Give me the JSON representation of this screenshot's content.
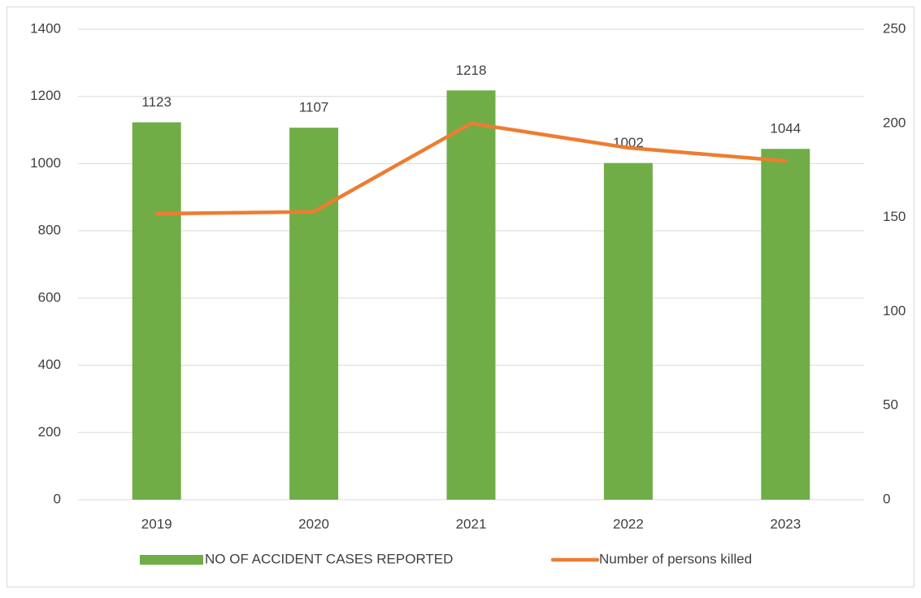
{
  "chart_data": {
    "type": "bar",
    "categories": [
      "2019",
      "2020",
      "2021",
      "2022",
      "2023"
    ],
    "series": [
      {
        "name": "NO OF ACCIDENT CASES REPORTED",
        "type": "bar",
        "color": "#70ad47",
        "values": [
          1123,
          1107,
          1218,
          1002,
          1044
        ],
        "data_labels": true
      },
      {
        "name": "Number of persons killed",
        "type": "line",
        "axis": "y2",
        "color": "#ed7d31",
        "values": [
          152,
          153,
          200,
          187,
          180
        ]
      }
    ],
    "ylim": [
      0,
      1400
    ],
    "yticks": [
      0,
      200,
      400,
      600,
      800,
      1000,
      1200,
      1400
    ],
    "y2lim": [
      0,
      250
    ],
    "y2ticks": [
      0,
      50,
      100,
      150,
      200,
      250
    ],
    "grid": true,
    "legend": "bottom"
  }
}
